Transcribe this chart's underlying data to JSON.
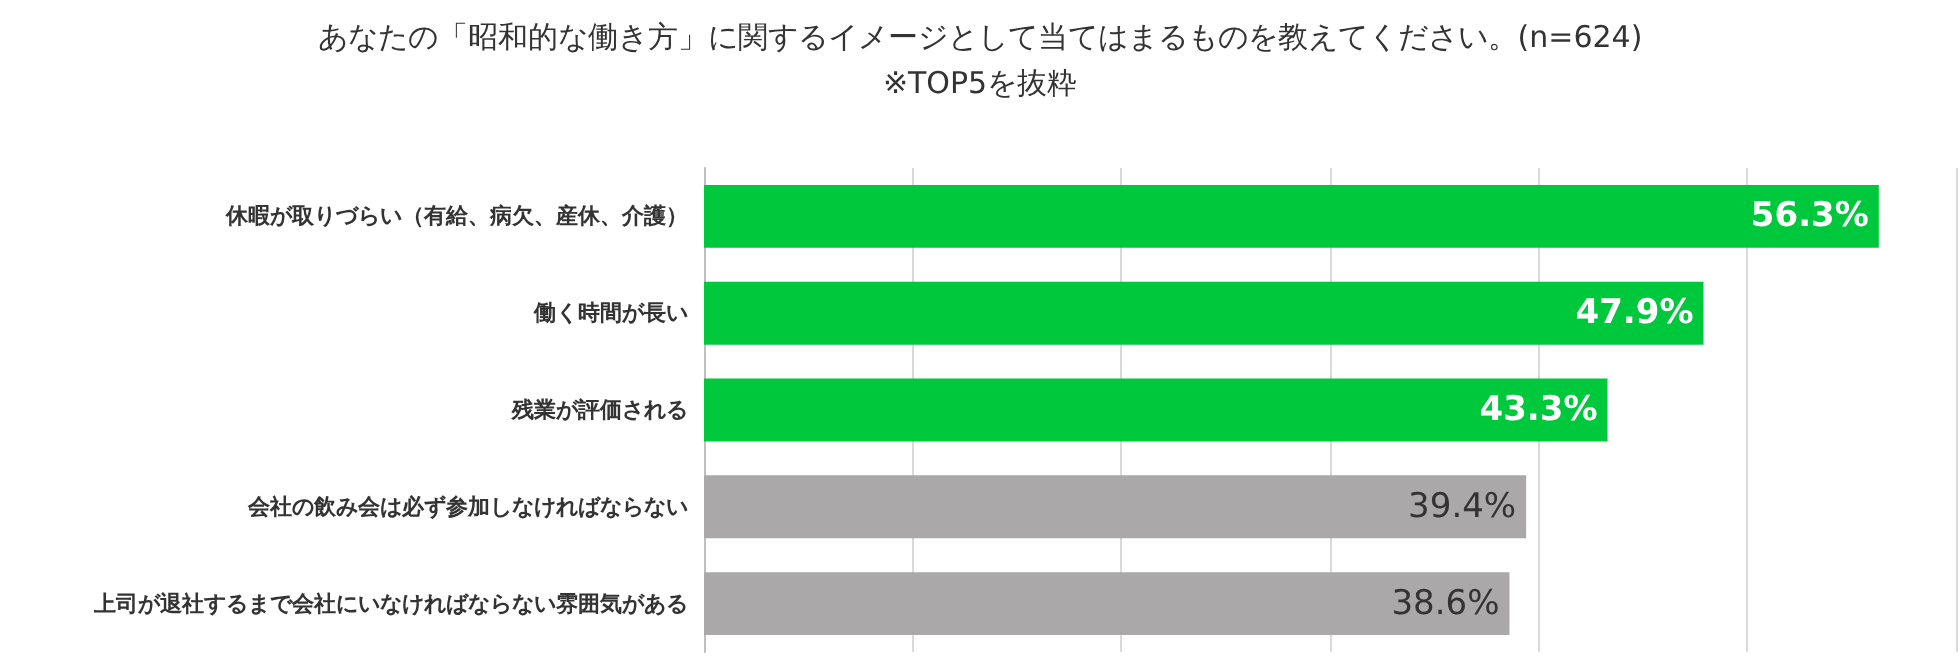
{
  "chart_data": {
    "type": "bar",
    "orientation": "horizontal",
    "title": "あなたの「昭和的な働き方」に関するイメージとして当てはまるものを教えてください。(n=624)",
    "subtitle": "※TOP5を抜粋",
    "categories": [
      "休暇が取りづらい（有給、病欠、産休、介護）",
      "働く時間が長い",
      "残業が評価される",
      "会社の飲み会は必ず参加しなければならない",
      "上司が退社するまで会社にいなければならない雰囲気がある"
    ],
    "values": [
      56.3,
      47.9,
      43.3,
      39.4,
      38.6
    ],
    "value_labels": [
      "56.3%",
      "47.9%",
      "43.3%",
      "39.4%",
      "38.6%"
    ],
    "colors": [
      "#00c83c",
      "#00c83c",
      "#00c83c",
      "#aaa8a8",
      "#aaa8a8"
    ],
    "xlim": [
      0,
      60
    ],
    "xticks": [
      {
        "value": 0,
        "label": null
      },
      {
        "value": 10,
        "label": null
      },
      {
        "value": 20,
        "label": null
      },
      {
        "value": 30,
        "label": null
      },
      {
        "value": 40,
        "label": null
      },
      {
        "value": 50,
        "label": null
      },
      {
        "value": 60,
        "label": null
      }
    ],
    "grid": "x",
    "tick_labels": "y"
  }
}
